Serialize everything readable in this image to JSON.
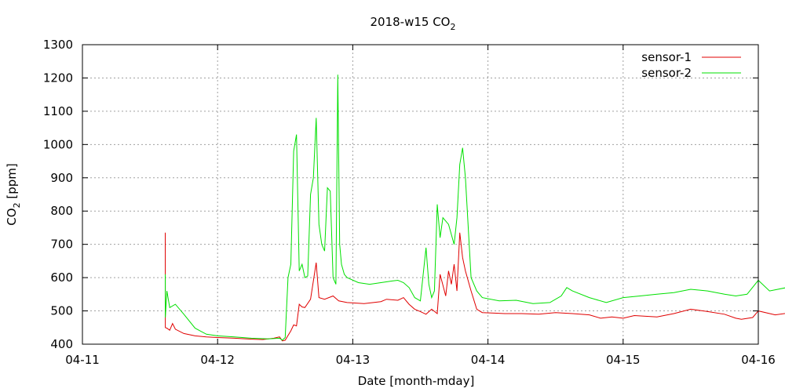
{
  "chart_data": {
    "type": "line",
    "title_main": "2018-w15 CO",
    "title_sub": "2",
    "xlabel": "Date [month-mday]",
    "ylabel_main": "CO",
    "ylabel_sub": "2",
    "ylabel_rest": " [ppm]",
    "xlim": [
      "04-11",
      "04-16"
    ],
    "ylim": [
      400,
      1300
    ],
    "x_ticks": [
      "04-11",
      "04-12",
      "04-13",
      "04-14",
      "04-15",
      "04-16"
    ],
    "y_ticks": [
      400,
      500,
      600,
      700,
      800,
      900,
      1000,
      1100,
      1200,
      1300
    ],
    "grid": true,
    "legend_position": "top-right",
    "series": [
      {
        "name": "sensor-1",
        "color": "#e00000",
        "points": [
          [
            "04-11 14:42",
            735
          ],
          [
            "04-11 14:43",
            450
          ],
          [
            "04-11 15:00",
            448
          ],
          [
            "04-11 15:30",
            442
          ],
          [
            "04-11 16:00",
            462
          ],
          [
            "04-11 16:30",
            445
          ],
          [
            "04-11 18:00",
            432
          ],
          [
            "04-11 20:00",
            425
          ],
          [
            "04-11 22:00",
            422
          ],
          [
            "04-12 00:00",
            420
          ],
          [
            "04-12 03:00",
            418
          ],
          [
            "04-12 06:00",
            415
          ],
          [
            "04-12 08:00",
            414
          ],
          [
            "04-12 10:00",
            418
          ],
          [
            "04-12 11:00",
            422
          ],
          [
            "04-12 11:30",
            410
          ],
          [
            "04-12 12:00",
            412
          ],
          [
            "04-12 13:00",
            440
          ],
          [
            "04-12 13:30",
            458
          ],
          [
            "04-12 14:00",
            455
          ],
          [
            "04-12 14:30",
            520
          ],
          [
            "04-12 15:00",
            512
          ],
          [
            "04-12 15:30",
            510
          ],
          [
            "04-12 16:30",
            535
          ],
          [
            "04-12 17:30",
            645
          ],
          [
            "04-12 18:00",
            540
          ],
          [
            "04-12 19:00",
            535
          ],
          [
            "04-12 20:30",
            545
          ],
          [
            "04-12 21:30",
            530
          ],
          [
            "04-12 23:00",
            525
          ],
          [
            "04-13 02:00",
            522
          ],
          [
            "04-13 05:00",
            528
          ],
          [
            "04-13 06:00",
            535
          ],
          [
            "04-13 08:00",
            532
          ],
          [
            "04-13 09:00",
            540
          ],
          [
            "04-13 10:00",
            520
          ],
          [
            "04-13 11:00",
            505
          ],
          [
            "04-13 12:00",
            498
          ],
          [
            "04-13 13:00",
            490
          ],
          [
            "04-13 14:00",
            505
          ],
          [
            "04-13 15:00",
            492
          ],
          [
            "04-13 15:30",
            610
          ],
          [
            "04-13 16:30",
            545
          ],
          [
            "04-13 17:00",
            620
          ],
          [
            "04-13 17:30",
            580
          ],
          [
            "04-13 18:00",
            640
          ],
          [
            "04-13 18:30",
            560
          ],
          [
            "04-13 19:00",
            735
          ],
          [
            "04-13 19:30",
            660
          ],
          [
            "04-13 20:00",
            620
          ],
          [
            "04-13 21:00",
            560
          ],
          [
            "04-13 22:00",
            505
          ],
          [
            "04-13 23:00",
            495
          ],
          [
            "04-14 03:00",
            492
          ],
          [
            "04-14 06:00",
            492
          ],
          [
            "04-14 09:00",
            490
          ],
          [
            "04-14 12:00",
            495
          ],
          [
            "04-14 15:00",
            492
          ],
          [
            "04-14 18:00",
            488
          ],
          [
            "04-14 20:00",
            478
          ],
          [
            "04-14 22:00",
            482
          ],
          [
            "04-15 00:00",
            478
          ],
          [
            "04-15 02:00",
            486
          ],
          [
            "04-15 06:00",
            482
          ],
          [
            "04-15 09:00",
            492
          ],
          [
            "04-15 12:00",
            505
          ],
          [
            "04-15 15:00",
            498
          ],
          [
            "04-15 18:00",
            490
          ],
          [
            "04-15 20:00",
            478
          ],
          [
            "04-15 21:00",
            475
          ],
          [
            "04-15 23:00",
            480
          ],
          [
            "04-16 03:00",
            488
          ],
          [
            "04-16 06:00",
            495
          ],
          [
            "04-16 08:00",
            505
          ],
          [
            "04-16 00:00",
            500
          ]
        ]
      },
      {
        "name": "sensor-2",
        "color": "#00e000",
        "points": [
          [
            "04-11 14:42",
            610
          ],
          [
            "04-11 14:43",
            480
          ],
          [
            "04-11 15:00",
            560
          ],
          [
            "04-11 15:30",
            510
          ],
          [
            "04-11 16:30",
            520
          ],
          [
            "04-11 18:00",
            490
          ],
          [
            "04-11 20:00",
            448
          ],
          [
            "04-11 22:00",
            430
          ],
          [
            "04-12 00:00",
            425
          ],
          [
            "04-12 03:00",
            422
          ],
          [
            "04-12 06:00",
            418
          ],
          [
            "04-12 09:00",
            416
          ],
          [
            "04-12 11:00",
            418
          ],
          [
            "04-12 11:30",
            412
          ],
          [
            "04-12 12:00",
            420
          ],
          [
            "04-12 12:30",
            600
          ],
          [
            "04-12 13:00",
            640
          ],
          [
            "04-12 13:30",
            980
          ],
          [
            "04-12 14:00",
            1030
          ],
          [
            "04-12 14:30",
            620
          ],
          [
            "04-12 15:00",
            640
          ],
          [
            "04-12 15:30",
            600
          ],
          [
            "04-12 16:00",
            605
          ],
          [
            "04-12 16:30",
            850
          ],
          [
            "04-12 17:00",
            900
          ],
          [
            "04-12 17:30",
            1080
          ],
          [
            "04-12 18:00",
            760
          ],
          [
            "04-12 18:30",
            700
          ],
          [
            "04-12 19:00",
            680
          ],
          [
            "04-12 19:30",
            870
          ],
          [
            "04-12 20:00",
            860
          ],
          [
            "04-12 20:30",
            600
          ],
          [
            "04-12 21:00",
            580
          ],
          [
            "04-12 21:20",
            1210
          ],
          [
            "04-12 21:40",
            700
          ],
          [
            "04-12 22:00",
            640
          ],
          [
            "04-12 22:30",
            610
          ],
          [
            "04-12 23:00",
            600
          ],
          [
            "04-13 01:00",
            585
          ],
          [
            "04-13 03:00",
            580
          ],
          [
            "04-13 05:00",
            585
          ],
          [
            "04-13 07:00",
            590
          ],
          [
            "04-13 08:00",
            592
          ],
          [
            "04-13 09:00",
            585
          ],
          [
            "04-13 10:00",
            570
          ],
          [
            "04-13 11:00",
            540
          ],
          [
            "04-13 12:00",
            530
          ],
          [
            "04-13 13:00",
            690
          ],
          [
            "04-13 13:30",
            580
          ],
          [
            "04-13 14:00",
            540
          ],
          [
            "04-13 14:30",
            560
          ],
          [
            "04-13 15:00",
            820
          ],
          [
            "04-13 15:30",
            720
          ],
          [
            "04-13 16:00",
            780
          ],
          [
            "04-13 17:00",
            760
          ],
          [
            "04-13 18:00",
            700
          ],
          [
            "04-13 18:30",
            780
          ],
          [
            "04-13 19:00",
            940
          ],
          [
            "04-13 19:30",
            990
          ],
          [
            "04-13 20:00",
            900
          ],
          [
            "04-13 21:00",
            600
          ],
          [
            "04-13 22:00",
            560
          ],
          [
            "04-13 23:00",
            540
          ],
          [
            "04-14 02:00",
            530
          ],
          [
            "04-14 05:00",
            532
          ],
          [
            "04-14 08:00",
            522
          ],
          [
            "04-14 11:00",
            525
          ],
          [
            "04-14 13:00",
            545
          ],
          [
            "04-14 14:00",
            570
          ],
          [
            "04-14 15:00",
            560
          ],
          [
            "04-14 18:00",
            540
          ],
          [
            "04-14 21:00",
            525
          ],
          [
            "04-15 00:00",
            540
          ],
          [
            "04-15 03:00",
            545
          ],
          [
            "04-15 06:00",
            550
          ],
          [
            "04-15 09:00",
            555
          ],
          [
            "04-15 12:00",
            565
          ],
          [
            "04-15 15:00",
            560
          ],
          [
            "04-15 18:00",
            550
          ],
          [
            "04-15 20:00",
            545
          ],
          [
            "04-15 22:00",
            550
          ],
          [
            "04-16 02:00",
            560
          ],
          [
            "04-16 05:00",
            570
          ],
          [
            "04-16 08:00",
            585
          ],
          [
            "04-16 00:00",
            592
          ]
        ]
      }
    ]
  }
}
